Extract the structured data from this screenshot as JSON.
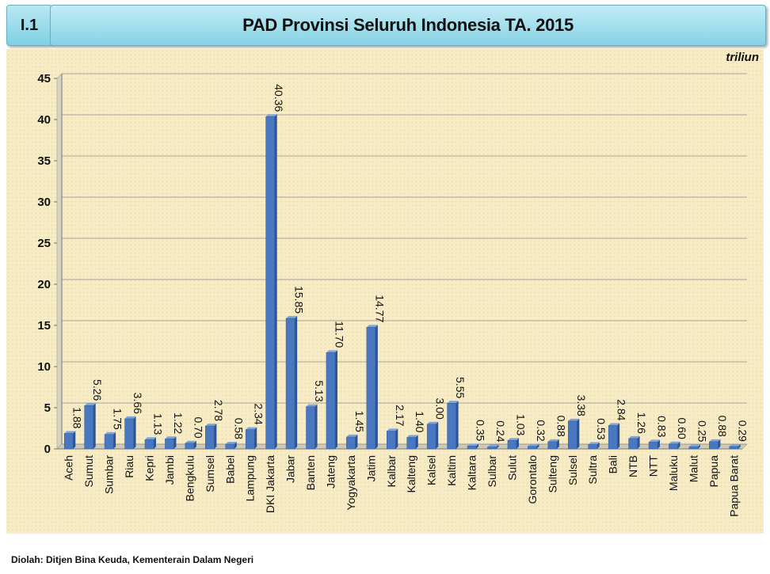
{
  "header": {
    "code": "I.1",
    "title": "PAD Provinsi Seluruh Indonesia TA. 2015"
  },
  "unit": "triliun",
  "source": "Diolah: Ditjen Bina Keuda, Kementerain Dalam Negeri",
  "colors": {
    "bar": "#4a78c0",
    "bar_dark": "#2d5596",
    "panel": "#f7ecc6"
  },
  "chart_data": {
    "type": "bar",
    "title": "PAD Provinsi Seluruh Indonesia TA. 2015",
    "xlabel": "",
    "ylabel": "",
    "ylim": [
      0,
      45
    ],
    "yticks": [
      0,
      5,
      10,
      15,
      20,
      25,
      30,
      35,
      40,
      45
    ],
    "grid": true,
    "categories": [
      "Aceh",
      "Sumut",
      "Sumbar",
      "Riau",
      "Kepri",
      "Jambi",
      "Bengkulu",
      "Sumsel",
      "Babel",
      "Lampung",
      "DKI Jakarta",
      "Jabar",
      "Banten",
      "Jateng",
      "Yogyakarta",
      "Jatim",
      "Kalbar",
      "Kalteng",
      "Kalsel",
      "Kaltim",
      "Kaltara",
      "Sulbar",
      "Sulut",
      "Gorontalo",
      "Sulteng",
      "Sulsel",
      "Sultra",
      "Bali",
      "NTB",
      "NTT",
      "Maluku",
      "Malut",
      "Papua",
      "Papua Barat"
    ],
    "values": [
      1.88,
      5.26,
      1.75,
      3.66,
      1.13,
      1.22,
      0.7,
      2.78,
      0.58,
      2.34,
      40.36,
      15.85,
      5.13,
      11.7,
      1.45,
      14.77,
      2.17,
      1.4,
      3.0,
      5.55,
      0.35,
      0.24,
      1.03,
      0.32,
      0.88,
      3.38,
      0.53,
      2.84,
      1.26,
      0.83,
      0.6,
      0.25,
      0.88,
      0.29
    ],
    "value_labels": [
      "1.88",
      "5.26",
      "1.75",
      "3.66",
      "1.13",
      "1.22",
      "0.70",
      "2.78",
      "0.58",
      "2.34",
      "40.36",
      "15.85",
      "5.13",
      "11.70",
      "1.45",
      "14.77",
      "2.17",
      "1.40",
      "3.00",
      "5.55",
      "0.35",
      "0.24",
      "1.03",
      "0.32",
      "0.88",
      "3.38",
      "0.53",
      "2.84",
      "1.26",
      "0.83",
      "0.60",
      "0.25",
      "0.88",
      "0.29"
    ]
  }
}
